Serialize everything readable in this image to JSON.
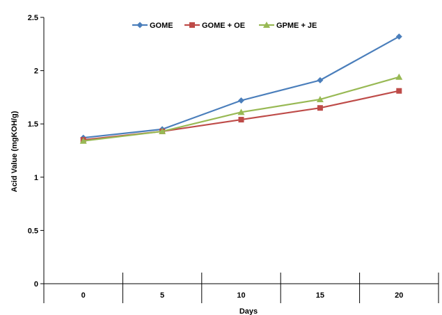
{
  "chart_data": {
    "type": "line",
    "categories": [
      "0",
      "5",
      "10",
      "15",
      "20"
    ],
    "series": [
      {
        "name": "GOME",
        "values": [
          1.37,
          1.45,
          1.72,
          1.91,
          2.32
        ],
        "color": "#4a7ebb",
        "marker": "diamond"
      },
      {
        "name": "GOME + OE",
        "values": [
          1.35,
          1.43,
          1.54,
          1.65,
          1.81
        ],
        "color": "#be4b48",
        "marker": "square"
      },
      {
        "name": "GPME + JE",
        "values": [
          1.34,
          1.43,
          1.61,
          1.73,
          1.94
        ],
        "color": "#98b954",
        "marker": "triangle"
      }
    ],
    "xlabel": "Days",
    "ylabel": "Acid Value (mgKOH/g)",
    "ylim": [
      0,
      2.5
    ],
    "yticks": [
      "0",
      "0.5",
      "1",
      "1.5",
      "2",
      "2.5"
    ],
    "grid": false,
    "legend_position": "top-center"
  }
}
